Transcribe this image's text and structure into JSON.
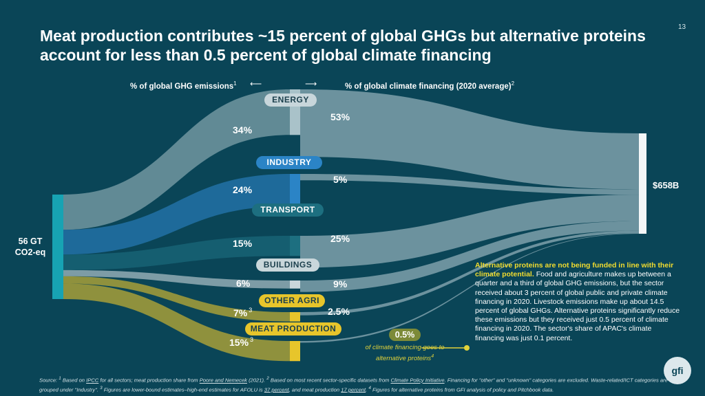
{
  "page": {
    "number": "13"
  },
  "title": "Meat production contributes ~15 percent of global GHGs but alternative proteins account for less than 0.5 percent of global climate financing",
  "headers": {
    "left": "% of global GHG emissions",
    "left_sup": "1",
    "right": "% of global climate financing (2020 average)",
    "right_sup": "2"
  },
  "chart_data": {
    "type": "sankey",
    "source_node": {
      "label_line1": "56 GT",
      "label_line2": "CO2-eq"
    },
    "target_node": {
      "label": "$658B"
    },
    "sectors": [
      {
        "key": "energy",
        "label": "ENERGY",
        "emissions_pct": 34,
        "emissions_label": "34%",
        "emissions_note": "",
        "financing_pct": 53,
        "financing_label": "53%",
        "color": "#a9c2c9"
      },
      {
        "key": "industry",
        "label": "INDUSTRY",
        "emissions_pct": 24,
        "emissions_label": "24%",
        "emissions_note": "",
        "financing_pct": 5,
        "financing_label": "5%",
        "color": "#2b84c6"
      },
      {
        "key": "transport",
        "label": "TRANSPORT",
        "emissions_pct": 15,
        "emissions_label": "15%",
        "emissions_note": "",
        "financing_pct": 25,
        "financing_label": "25%",
        "color": "#1d6f80"
      },
      {
        "key": "buildings",
        "label": "BUILDINGS",
        "emissions_pct": 6,
        "emissions_label": "6%",
        "emissions_note": "",
        "financing_pct": 9,
        "financing_label": "9%",
        "color": "#c9d7db"
      },
      {
        "key": "other_agri",
        "label": "OTHER AGRI",
        "emissions_pct": 7,
        "emissions_label": "7%",
        "emissions_note": "3",
        "financing_pct": 2.5,
        "financing_label": "2.5%",
        "color": "#e7c52b"
      },
      {
        "key": "meat",
        "label": "MEAT PRODUCTION",
        "emissions_pct": 15,
        "emissions_label": "15%",
        "emissions_note": "3",
        "financing_pct": 0.5,
        "financing_label": "0.5%",
        "color": "#e7c52b"
      }
    ],
    "alt_proteins": {
      "value_label": "0.5%",
      "note": "of climate financing goes to alternative proteins",
      "note_sup": "4"
    }
  },
  "callout": {
    "highlight": "Alternative proteins are not being funded in line with their climate potential.",
    "body": " Food and agriculture makes up between a quarter and a third of global GHG emissions, but the sector received about 3 percent of global public and private climate financing in 2020. Livestock emissions make up about 14.5 percent of global GHGs. Alternative proteins significantly reduce these emissions but they received just 0.5 percent of climate financing in 2020. The sector's share of APAC's climate financing was just 0.1 percent."
  },
  "source": {
    "p1": "Source: ",
    "s1": "1",
    "p2": " Based on ",
    "l1": "IPCC",
    "p3": " for all sectors; meat production share from ",
    "l2": "Poore and Nemecek",
    "p4": " (2021). ",
    "s2": "2",
    "p5": " Based on most recent sector-specific datasets from ",
    "l3": "Climate Policy Initiative",
    "p6": ". Financing for \"other\" and \"unknown\" categories are excluded. Waste-related/ICT categories are grouped under \"Industry\". ",
    "s3": "3",
    "p7": " Figures are lower-bound estimates–high-end estimates for AFOLU is ",
    "l4": "37 percent",
    "p8": ", and meat production ",
    "l5": "17 percent",
    "p9": ". ",
    "s4": "4",
    "p10": " Figures for alternative proteins from GFI analysis of policy and Pitchbook data."
  },
  "logo": {
    "text": "gfi"
  }
}
